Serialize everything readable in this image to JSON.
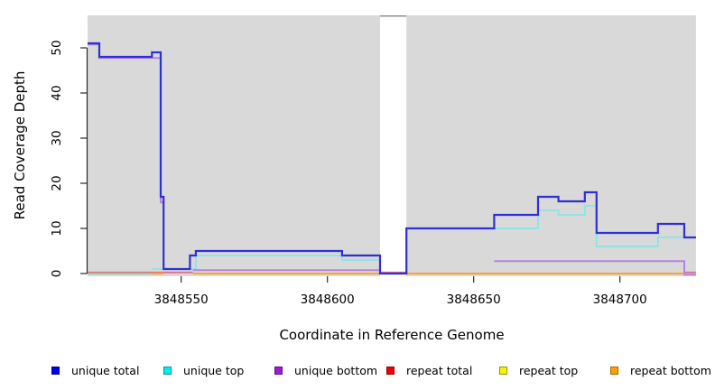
{
  "figure": {
    "x_title": "Coordinate in Reference Genome",
    "y_title": "Read Coverage Depth"
  },
  "legend": {
    "items": [
      {
        "label": "unique total",
        "fill": "#0000f0",
        "border": "#0000a0"
      },
      {
        "label": "unique top",
        "fill": "#00f0f0",
        "border": "#00989e"
      },
      {
        "label": "unique bottom",
        "fill": "#a018d8",
        "border": "#640d90"
      },
      {
        "label": "repeat total",
        "fill": "#f00000",
        "border": "#9e0000"
      },
      {
        "label": "repeat top",
        "fill": "#f5f500",
        "border": "#96960a"
      },
      {
        "label": "repeat bottom",
        "fill": "#ffa000",
        "border": "#a86a00"
      }
    ]
  },
  "chart_data": {
    "type": "line",
    "subtype": "step-coverage",
    "title": "",
    "xlabel": "Coordinate in Reference Genome",
    "ylabel": "Read Coverage Depth",
    "xlim": [
      3848518,
      3848726
    ],
    "ylim": [
      0,
      57
    ],
    "x_ticks": [
      3848550,
      3848600,
      3848650,
      3848700
    ],
    "y_ticks": [
      0,
      10,
      20,
      30,
      40,
      50
    ],
    "grid": false,
    "plot_background": "#d9d9d9",
    "gap_region": {
      "x0": 3848618,
      "x1": 3848627,
      "note": "white band with no background; coverage drops to 0"
    },
    "legend_position": "bottom",
    "series": [
      {
        "name": "repeat top",
        "color": "#f5f500",
        "width": 1.8,
        "dy": 0,
        "steps": [
          [
            3848540,
            0
          ],
          [
            3848544,
            null
          ]
        ],
        "end": 3848726
      },
      {
        "name": "repeat total",
        "color": "#e0718f",
        "width": 1.8,
        "dy": -1.2,
        "steps": [
          [
            3848518,
            0
          ],
          [
            3848554,
            null
          ],
          [
            3848618,
            0
          ],
          [
            3848627,
            null
          ],
          [
            3848722,
            0
          ]
        ],
        "end": 3848726
      },
      {
        "name": "unique-top-repeat-top-overlap-blend",
        "color": "#93d795",
        "width": 1.8,
        "dy": 0.3,
        "steps": [
          [
            3848518,
            0
          ],
          [
            3848540,
            null
          ]
        ],
        "end": 3848726
      },
      {
        "name": "unique top",
        "color": "#8ae4e8",
        "width": 1.8,
        "dy": 0,
        "steps": [
          [
            3848540,
            1
          ],
          [
            3848555,
            4
          ],
          [
            3848605,
            3
          ],
          [
            3848618,
            0
          ],
          [
            3848627,
            10
          ],
          [
            3848672,
            14
          ],
          [
            3848679,
            13
          ],
          [
            3848688,
            15
          ],
          [
            3848692,
            6
          ],
          [
            3848713,
            8
          ]
        ],
        "end": 3848726
      },
      {
        "name": "unique bottom",
        "color": "#b583de",
        "width": 2,
        "dy": 1.2,
        "steps": [
          [
            3848518,
            51
          ],
          [
            3848522,
            48
          ],
          [
            3848543,
            16
          ],
          [
            3848544,
            null
          ],
          [
            3848554,
            1
          ],
          [
            3848618,
            null
          ],
          [
            3848657,
            3
          ],
          [
            3848722,
            0
          ]
        ],
        "end": 3848726
      },
      {
        "name": "repeat bottom",
        "color": "#ffa126",
        "width": 2,
        "dy": 0,
        "steps": [
          [
            3848540,
            0
          ],
          [
            3848544,
            null
          ],
          [
            3848554,
            0
          ],
          [
            3848618,
            null
          ],
          [
            3848627,
            0
          ],
          [
            3848722,
            null
          ]
        ],
        "end": 3848726
      },
      {
        "name": "unique total",
        "color": "#2f2fd8",
        "width": 2.2,
        "dy": 0,
        "steps": [
          [
            3848518,
            51
          ],
          [
            3848522,
            48
          ],
          [
            3848540,
            49
          ],
          [
            3848543,
            17
          ],
          [
            3848544,
            1
          ],
          [
            3848553,
            4
          ],
          [
            3848555,
            5
          ],
          [
            3848605,
            4
          ],
          [
            3848618,
            0
          ],
          [
            3848627,
            10
          ],
          [
            3848657,
            13
          ],
          [
            3848672,
            17
          ],
          [
            3848679,
            16
          ],
          [
            3848688,
            18
          ],
          [
            3848692,
            9
          ],
          [
            3848713,
            11
          ],
          [
            3848722,
            8
          ]
        ],
        "end": 3848726
      }
    ]
  }
}
